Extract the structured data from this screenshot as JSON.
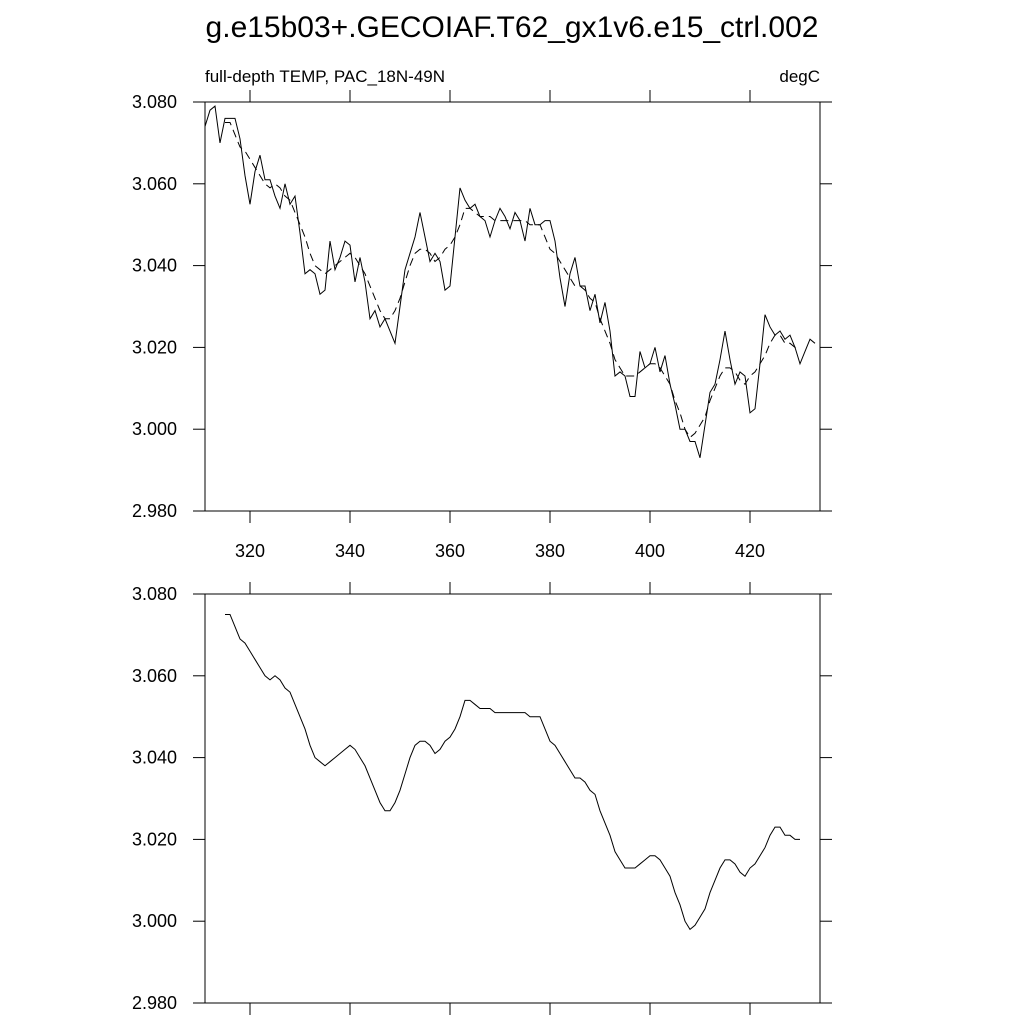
{
  "chart_data": [
    {
      "type": "line",
      "title": "g.e15b03+.GECOIAF.T62_gx1v6.e15_ctrl.002",
      "subtitle": "full-depth TEMP, PAC_18N-49N",
      "units_label": "degC",
      "xlim": [
        311,
        434
      ],
      "ylim": [
        2.98,
        3.08
      ],
      "xticks": [
        320,
        340,
        360,
        380,
        400,
        420
      ],
      "xtick_labels": true,
      "yticks": [
        {
          "value": 2.98,
          "label": "2.980"
        },
        {
          "value": 3.0,
          "label": "3.000"
        },
        {
          "value": 3.02,
          "label": "3.020"
        },
        {
          "value": 3.04,
          "label": "3.040"
        },
        {
          "value": 3.06,
          "label": "3.060"
        },
        {
          "value": 3.08,
          "label": "3.080"
        }
      ],
      "series": [
        {
          "color": "#000000",
          "dash": false,
          "x": [
            311,
            312,
            313,
            314,
            315,
            316,
            317,
            318,
            319,
            320,
            321,
            322,
            323,
            324,
            325,
            326,
            327,
            328,
            329,
            330,
            331,
            332,
            333,
            334,
            335,
            336,
            337,
            338,
            339,
            340,
            341,
            342,
            343,
            344,
            345,
            346,
            347,
            348,
            349,
            350,
            351,
            352,
            353,
            354,
            355,
            356,
            357,
            358,
            359,
            360,
            361,
            362,
            363,
            364,
            365,
            366,
            367,
            368,
            369,
            370,
            371,
            372,
            373,
            374,
            375,
            376,
            377,
            378,
            379,
            380,
            381,
            382,
            383,
            384,
            385,
            386,
            387,
            388,
            389,
            390,
            391,
            392,
            393,
            394,
            395,
            396,
            397,
            398,
            399,
            400,
            401,
            402,
            403,
            404,
            405,
            406,
            407,
            408,
            409,
            410,
            411,
            412,
            413,
            414,
            415,
            416,
            417,
            418,
            419,
            420,
            421,
            422,
            423,
            424,
            425,
            426,
            427,
            428,
            429,
            430,
            431,
            432,
            433
          ],
          "values": [
            3.074,
            3.078,
            3.079,
            3.07,
            3.076,
            3.076,
            3.076,
            3.071,
            3.062,
            3.055,
            3.063,
            3.067,
            3.061,
            3.061,
            3.057,
            3.054,
            3.06,
            3.055,
            3.057,
            3.048,
            3.038,
            3.039,
            3.038,
            3.033,
            3.034,
            3.046,
            3.039,
            3.042,
            3.046,
            3.045,
            3.036,
            3.042,
            3.036,
            3.027,
            3.029,
            3.025,
            3.027,
            3.024,
            3.021,
            3.03,
            3.039,
            3.043,
            3.047,
            3.053,
            3.047,
            3.041,
            3.043,
            3.041,
            3.034,
            3.035,
            3.047,
            3.059,
            3.056,
            3.054,
            3.055,
            3.052,
            3.051,
            3.047,
            3.051,
            3.054,
            3.052,
            3.049,
            3.053,
            3.051,
            3.046,
            3.054,
            3.05,
            3.05,
            3.051,
            3.051,
            3.046,
            3.037,
            3.03,
            3.038,
            3.042,
            3.035,
            3.035,
            3.029,
            3.033,
            3.026,
            3.031,
            3.024,
            3.013,
            3.014,
            3.013,
            3.008,
            3.008,
            3.019,
            3.015,
            3.016,
            3.02,
            3.014,
            3.018,
            3.011,
            3.006,
            3.0,
            3.0,
            2.997,
            2.997,
            2.993,
            3.001,
            3.009,
            3.011,
            3.017,
            3.024,
            3.017,
            3.011,
            3.014,
            3.013,
            3.004,
            3.005,
            3.016,
            3.028,
            3.025,
            3.023,
            3.024,
            3.022,
            3.023,
            3.02,
            3.016,
            3.019,
            3.022,
            3.021
          ]
        },
        {
          "color": "#000000",
          "dash": true,
          "x": [
            315,
            316,
            317,
            318,
            319,
            320,
            321,
            322,
            323,
            324,
            325,
            326,
            327,
            328,
            329,
            330,
            331,
            332,
            333,
            334,
            335,
            336,
            337,
            338,
            339,
            340,
            341,
            342,
            343,
            344,
            345,
            346,
            347,
            348,
            349,
            350,
            351,
            352,
            353,
            354,
            355,
            356,
            357,
            358,
            359,
            360,
            361,
            362,
            363,
            364,
            365,
            366,
            367,
            368,
            369,
            370,
            371,
            372,
            373,
            374,
            375,
            376,
            377,
            378,
            379,
            380,
            381,
            382,
            383,
            384,
            385,
            386,
            387,
            388,
            389,
            390,
            391,
            392,
            393,
            394,
            395,
            396,
            397,
            398,
            399,
            400,
            401,
            402,
            403,
            404,
            405,
            406,
            407,
            408,
            409,
            410,
            411,
            412,
            413,
            414,
            415,
            416,
            417,
            418,
            419,
            420,
            421,
            422,
            423,
            424,
            425,
            426,
            427,
            428,
            429,
            430
          ],
          "values": [
            3.075,
            3.075,
            3.072,
            3.069,
            3.068,
            3.066,
            3.064,
            3.062,
            3.06,
            3.059,
            3.06,
            3.059,
            3.057,
            3.056,
            3.053,
            3.05,
            3.047,
            3.043,
            3.04,
            3.039,
            3.038,
            3.039,
            3.04,
            3.041,
            3.042,
            3.043,
            3.042,
            3.04,
            3.038,
            3.035,
            3.032,
            3.029,
            3.027,
            3.027,
            3.029,
            3.032,
            3.036,
            3.04,
            3.043,
            3.044,
            3.044,
            3.043,
            3.041,
            3.042,
            3.044,
            3.045,
            3.047,
            3.05,
            3.054,
            3.054,
            3.053,
            3.052,
            3.052,
            3.052,
            3.051,
            3.051,
            3.051,
            3.051,
            3.051,
            3.051,
            3.051,
            3.05,
            3.05,
            3.05,
            3.047,
            3.044,
            3.043,
            3.041,
            3.039,
            3.037,
            3.035,
            3.035,
            3.034,
            3.032,
            3.031,
            3.027,
            3.024,
            3.021,
            3.017,
            3.015,
            3.013,
            3.013,
            3.013,
            3.014,
            3.015,
            3.016,
            3.016,
            3.015,
            3.013,
            3.011,
            3.007,
            3.004,
            3.0,
            2.998,
            2.999,
            3.001,
            3.003,
            3.007,
            3.01,
            3.013,
            3.015,
            3.015,
            3.014,
            3.012,
            3.011,
            3.013,
            3.014,
            3.016,
            3.018,
            3.021,
            3.023,
            3.023,
            3.021,
            3.021,
            3.02,
            3.02
          ]
        }
      ]
    },
    {
      "type": "line",
      "xlim": [
        311,
        434
      ],
      "ylim": [
        2.98,
        3.08
      ],
      "xticks": [
        320,
        340,
        360,
        380,
        400,
        420
      ],
      "xtick_labels": false,
      "yticks": [
        {
          "value": 2.98,
          "label": "2.980"
        },
        {
          "value": 3.0,
          "label": "3.000"
        },
        {
          "value": 3.02,
          "label": "3.020"
        },
        {
          "value": 3.04,
          "label": "3.040"
        },
        {
          "value": 3.06,
          "label": "3.060"
        },
        {
          "value": 3.08,
          "label": "3.080"
        }
      ],
      "series": [
        {
          "color": "#000000",
          "dash": false,
          "x": [
            315,
            316,
            317,
            318,
            319,
            320,
            321,
            322,
            323,
            324,
            325,
            326,
            327,
            328,
            329,
            330,
            331,
            332,
            333,
            334,
            335,
            336,
            337,
            338,
            339,
            340,
            341,
            342,
            343,
            344,
            345,
            346,
            347,
            348,
            349,
            350,
            351,
            352,
            353,
            354,
            355,
            356,
            357,
            358,
            359,
            360,
            361,
            362,
            363,
            364,
            365,
            366,
            367,
            368,
            369,
            370,
            371,
            372,
            373,
            374,
            375,
            376,
            377,
            378,
            379,
            380,
            381,
            382,
            383,
            384,
            385,
            386,
            387,
            388,
            389,
            390,
            391,
            392,
            393,
            394,
            395,
            396,
            397,
            398,
            399,
            400,
            401,
            402,
            403,
            404,
            405,
            406,
            407,
            408,
            409,
            410,
            411,
            412,
            413,
            414,
            415,
            416,
            417,
            418,
            419,
            420,
            421,
            422,
            423,
            424,
            425,
            426,
            427,
            428,
            429,
            430
          ],
          "values": [
            3.075,
            3.075,
            3.072,
            3.069,
            3.068,
            3.066,
            3.064,
            3.062,
            3.06,
            3.059,
            3.06,
            3.059,
            3.057,
            3.056,
            3.053,
            3.05,
            3.047,
            3.043,
            3.04,
            3.039,
            3.038,
            3.039,
            3.04,
            3.041,
            3.042,
            3.043,
            3.042,
            3.04,
            3.038,
            3.035,
            3.032,
            3.029,
            3.027,
            3.027,
            3.029,
            3.032,
            3.036,
            3.04,
            3.043,
            3.044,
            3.044,
            3.043,
            3.041,
            3.042,
            3.044,
            3.045,
            3.047,
            3.05,
            3.054,
            3.054,
            3.053,
            3.052,
            3.052,
            3.052,
            3.051,
            3.051,
            3.051,
            3.051,
            3.051,
            3.051,
            3.051,
            3.05,
            3.05,
            3.05,
            3.047,
            3.044,
            3.043,
            3.041,
            3.039,
            3.037,
            3.035,
            3.035,
            3.034,
            3.032,
            3.031,
            3.027,
            3.024,
            3.021,
            3.017,
            3.015,
            3.013,
            3.013,
            3.013,
            3.014,
            3.015,
            3.016,
            3.016,
            3.015,
            3.013,
            3.011,
            3.007,
            3.004,
            3.0,
            2.998,
            2.999,
            3.001,
            3.003,
            3.007,
            3.01,
            3.013,
            3.015,
            3.015,
            3.014,
            3.012,
            3.011,
            3.013,
            3.014,
            3.016,
            3.018,
            3.021,
            3.023,
            3.023,
            3.021,
            3.021,
            3.02,
            3.02
          ]
        }
      ]
    }
  ]
}
